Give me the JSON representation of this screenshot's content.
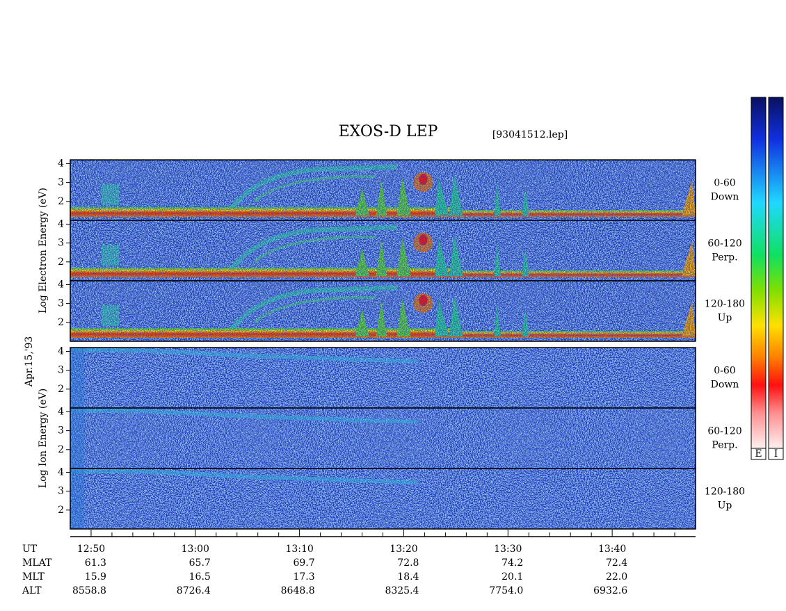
{
  "title": "EXOS-D LEP",
  "file": "[93041512.lep]",
  "date": "Apr.15,'93",
  "groups": [
    {
      "label": "Log Electron Energy (eV)",
      "kind": "electron",
      "panels": [
        {
          "lines": [
            "0-60",
            "Down"
          ]
        },
        {
          "lines": [
            "60-120",
            "Perp."
          ]
        },
        {
          "lines": [
            "120-180",
            "Up"
          ]
        }
      ]
    },
    {
      "label": "Log Ion Energy (eV)",
      "kind": "ion",
      "panels": [
        {
          "lines": [
            "0-60",
            "Down"
          ]
        },
        {
          "lines": [
            "60-120",
            "Perp."
          ]
        },
        {
          "lines": [
            "120-180",
            "Up"
          ]
        }
      ]
    }
  ],
  "ylim": [
    1,
    4.2
  ],
  "yticks": [
    2,
    3,
    4
  ],
  "xlim": [
    768,
    828
  ],
  "xticks": [
    {
      "value": 770,
      "label": "12:50"
    },
    {
      "value": 780,
      "label": "13:00"
    },
    {
      "value": 790,
      "label": "13:10"
    },
    {
      "value": 800,
      "label": "13:20"
    },
    {
      "value": 810,
      "label": "13:30"
    },
    {
      "value": 820,
      "label": "13:40"
    }
  ],
  "xminor": [
    772,
    774,
    776,
    778,
    782,
    784,
    786,
    788,
    792,
    794,
    796,
    798,
    802,
    804,
    806,
    808,
    812,
    814,
    816,
    818,
    822,
    824,
    826
  ],
  "rows": [
    {
      "label": "UT"
    },
    {
      "label": "MLAT",
      "values": [
        "61.3",
        "65.7",
        "69.7",
        "72.8",
        "74.2",
        "72.4"
      ]
    },
    {
      "label": "MLT",
      "values": [
        "15.9",
        "16.5",
        "17.3",
        "18.4",
        "20.1",
        "22.0"
      ]
    },
    {
      "label": "ALT",
      "values": [
        "8558.8",
        "8726.4",
        "8648.8",
        "8325.4",
        "7754.0",
        "6932.6"
      ]
    }
  ],
  "colorbars": [
    {
      "label": "E"
    },
    {
      "label": "I"
    }
  ]
}
